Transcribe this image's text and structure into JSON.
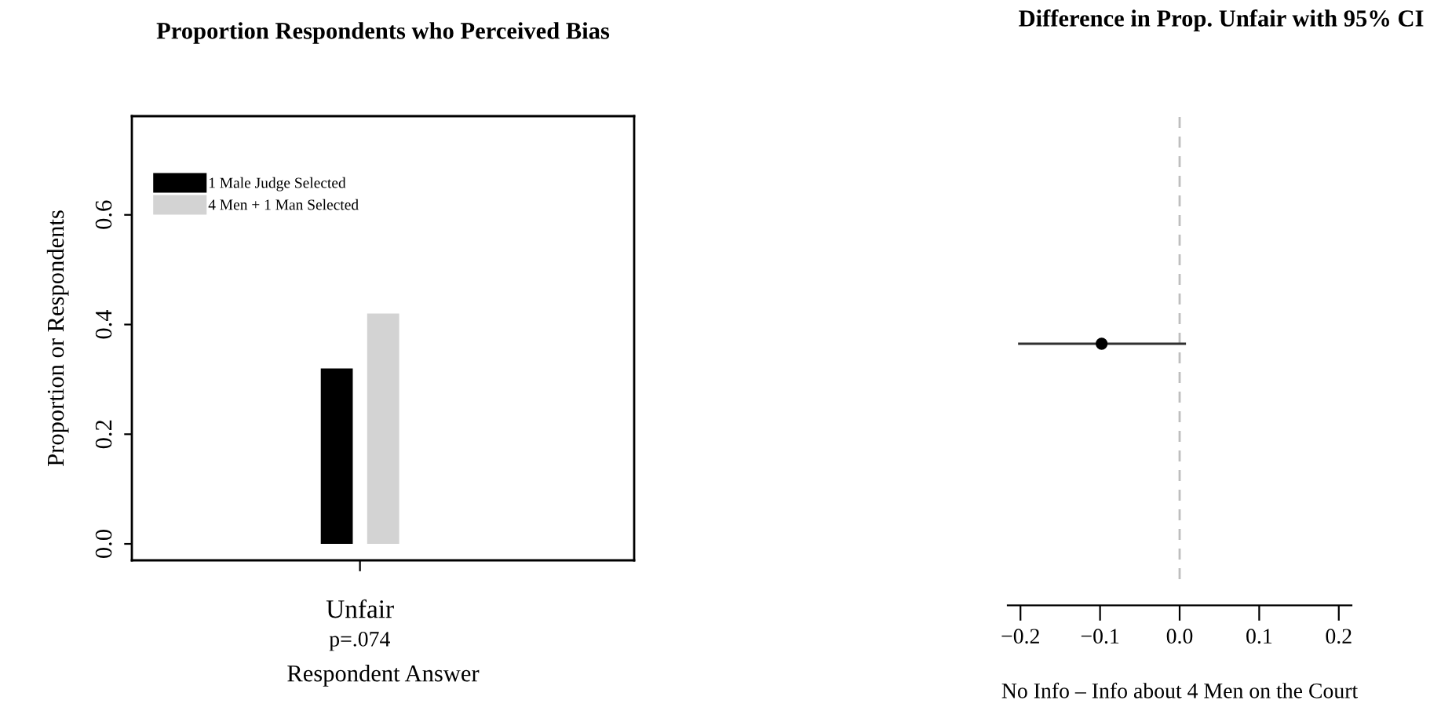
{
  "chart_data": [
    {
      "type": "bar",
      "title": "Proportion Respondents who Perceived Bias",
      "xlabel": "Respondent Answer",
      "ylabel": "Proportion or Respondents",
      "categories": [
        "Unfair"
      ],
      "series": [
        {
          "name": "1 Male Judge Selected",
          "color": "#000000",
          "values": [
            0.32
          ]
        },
        {
          "name": "4 Men + 1 Man Selected",
          "color": "#d3d3d3",
          "values": [
            0.42
          ]
        }
      ],
      "ylim": [
        -0.03,
        0.78
      ],
      "yticks": [
        {
          "value": 0.0,
          "label": "0.0"
        },
        0.2,
        0.4,
        0.6
      ],
      "legend": "top left",
      "grid": false,
      "annotations": [
        "p=.074"
      ]
    },
    {
      "type": "scatter",
      "title": "Difference in Prop. Unfair with 95% CI",
      "xlabel": "No Info – Info about 4 Men on the Court",
      "orientation": "horizontal",
      "categories": [
        null
      ],
      "values": [
        -0.098
      ],
      "errors": [
        [
          -0.203,
          0.008
        ]
      ],
      "color": "#000000",
      "marker": "circle",
      "xlim": [
        -0.216,
        0.216
      ],
      "xticks": [
        -0.2,
        -0.1,
        {
          "value": 0.0,
          "label": "0.0"
        },
        0.1,
        0.2
      ],
      "tick_labels": "x",
      "grid": false,
      "ref_lines": [
        {
          "axis": "x",
          "value": 0.0,
          "color": "#bebebe",
          "line_style": "dashed"
        }
      ]
    }
  ]
}
